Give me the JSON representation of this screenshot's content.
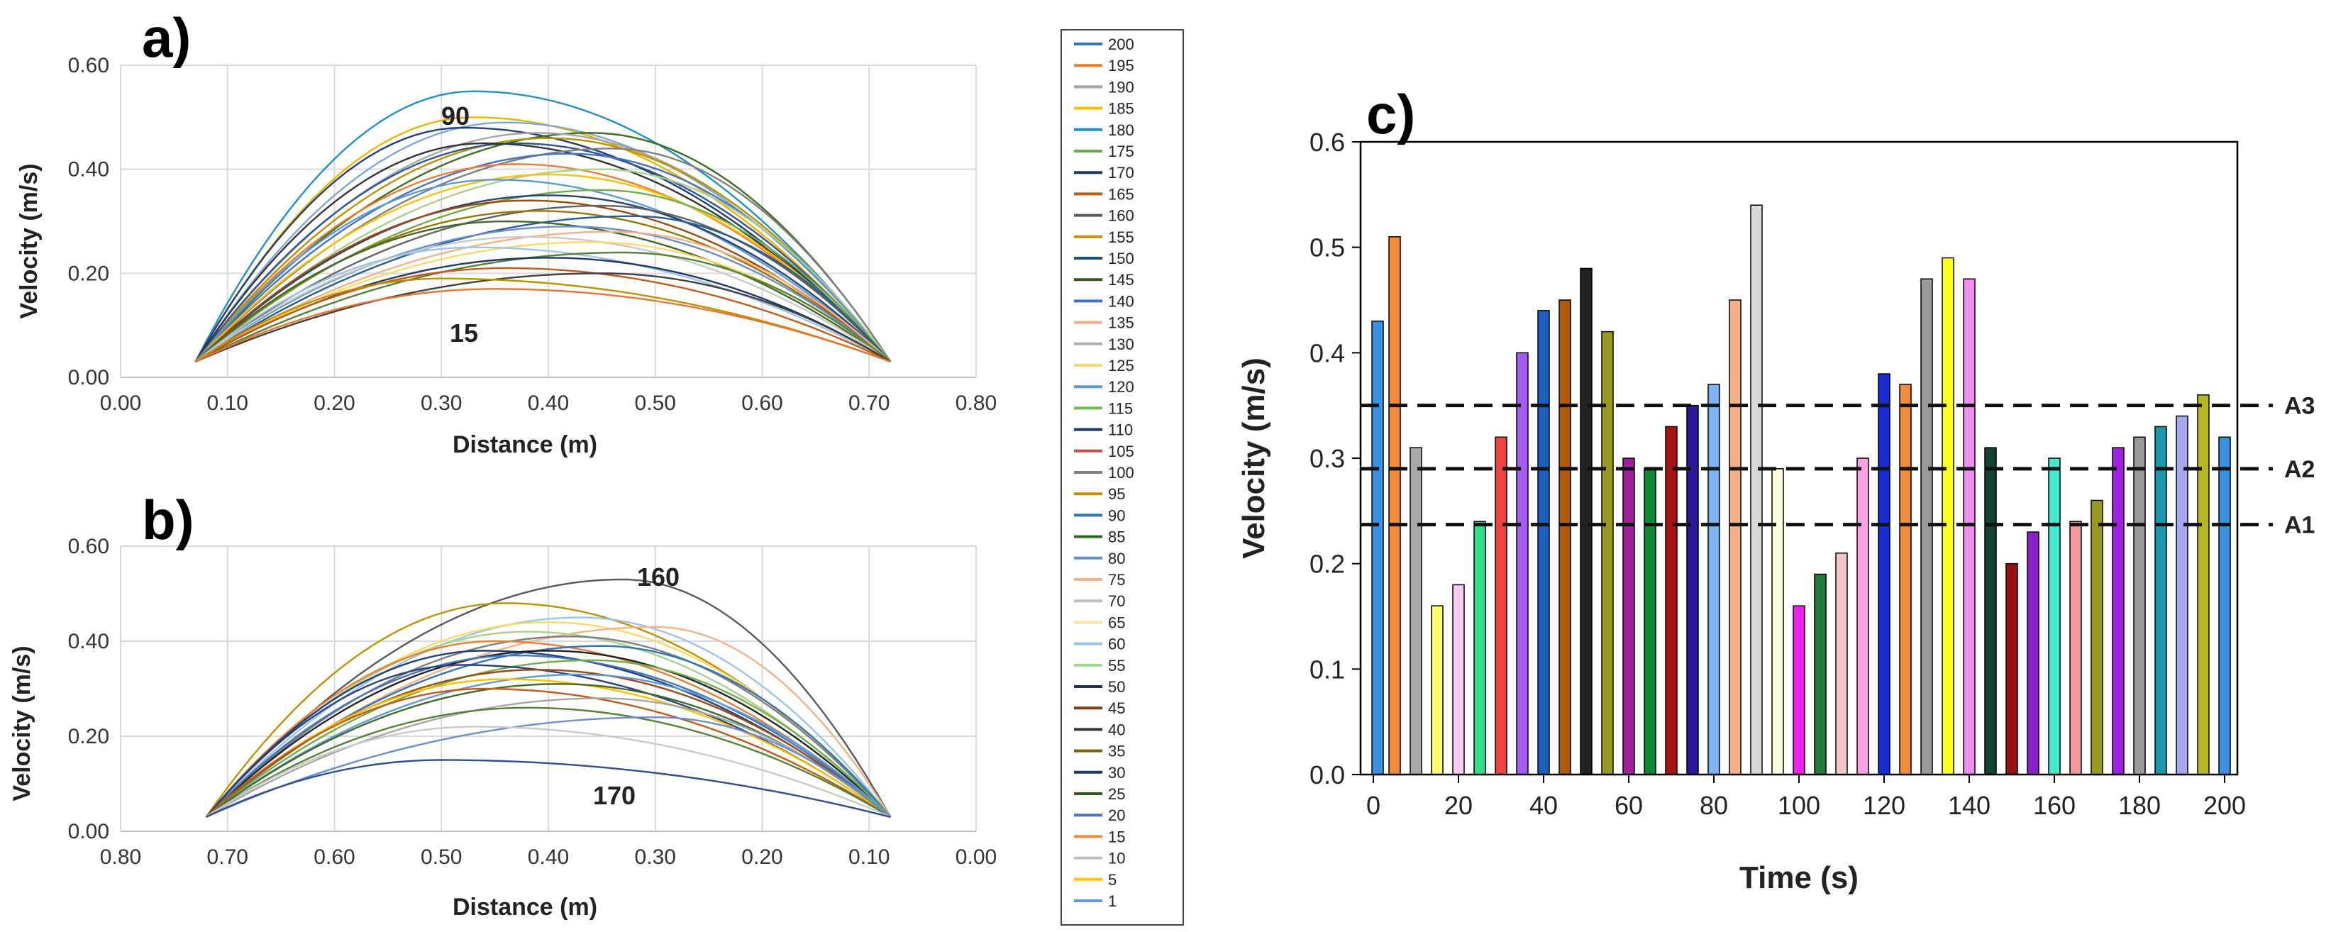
{
  "chart_data": [
    {
      "panel": "a)",
      "type": "line",
      "title": "",
      "xlabel": "Distance (m)",
      "ylabel": "Velocity (m/s)",
      "xlim": [
        0.0,
        0.8
      ],
      "ylim": [
        0.0,
        0.6
      ],
      "x_ticks": [
        "0.00",
        "0.10",
        "0.20",
        "0.30",
        "0.40",
        "0.50",
        "0.60",
        "0.70",
        "0.80"
      ],
      "y_ticks": [
        "0.00",
        "0.20",
        "0.40",
        "0.60"
      ],
      "x_tick_values": [
        0,
        0.1,
        0.2,
        0.3,
        0.4,
        0.5,
        0.6,
        0.7,
        0.8
      ],
      "y_tick_values": [
        0,
        0.2,
        0.4,
        0.6
      ],
      "grid": true,
      "x_range_data": [
        0.07,
        0.72
      ],
      "annotations": [
        {
          "text": "90",
          "x": 0.33,
          "y": 0.565
        },
        {
          "text": "15",
          "x": 0.33,
          "y": 0.095
        }
      ],
      "series": [
        {
          "name": "90",
          "peak": 0.55,
          "peak_x": 0.33,
          "color": "#1f8fcc"
        },
        {
          "name": "85",
          "peak": 0.5,
          "peak_x": 0.33,
          "color": "#f0b400"
        },
        {
          "name": "80",
          "peak": 0.49,
          "peak_x": 0.36,
          "color": "#7ea6d8"
        },
        {
          "name": "75",
          "peak": 0.48,
          "peak_x": 0.32,
          "color": "#1f3f7a"
        },
        {
          "name": "70",
          "peak": 0.47,
          "peak_x": 0.44,
          "color": "#3b6e1e"
        },
        {
          "name": "65",
          "peak": 0.47,
          "peak_x": 0.39,
          "color": "#a5a5a5"
        },
        {
          "name": "60",
          "peak": 0.46,
          "peak_x": 0.4,
          "color": "#bf9000"
        },
        {
          "name": "55",
          "peak": 0.45,
          "peak_x": 0.37,
          "color": "#2f5597"
        },
        {
          "name": "50",
          "peak": 0.45,
          "peak_x": 0.34,
          "color": "#333333"
        },
        {
          "name": "45",
          "peak": 0.44,
          "peak_x": 0.46,
          "color": "#7f7f7f"
        },
        {
          "name": "40",
          "peak": 0.43,
          "peak_x": 0.42,
          "color": "#4472c4"
        },
        {
          "name": "35",
          "peak": 0.41,
          "peak_x": 0.37,
          "color": "#ed7d31"
        },
        {
          "name": "30",
          "peak": 0.4,
          "peak_x": 0.45,
          "color": "#a9d18e"
        },
        {
          "name": "25",
          "peak": 0.39,
          "peak_x": 0.4,
          "color": "#ffc000"
        },
        {
          "name": "20",
          "peak": 0.38,
          "peak_x": 0.35,
          "color": "#5b9bd5"
        },
        {
          "name": "10",
          "peak": 0.36,
          "peak_x": 0.45,
          "color": "#70ad47"
        },
        {
          "name": "5",
          "peak": 0.35,
          "peak_x": 0.4,
          "color": "#264478"
        },
        {
          "name": "1",
          "peak": 0.34,
          "peak_x": 0.38,
          "color": "#9e480e"
        },
        {
          "name": "95",
          "peak": 0.33,
          "peak_x": 0.45,
          "color": "#636363"
        },
        {
          "name": "100",
          "peak": 0.32,
          "peak_x": 0.39,
          "color": "#997300"
        },
        {
          "name": "105",
          "peak": 0.31,
          "peak_x": 0.48,
          "color": "#255e91"
        },
        {
          "name": "110",
          "peak": 0.3,
          "peak_x": 0.36,
          "color": "#43682b"
        },
        {
          "name": "115",
          "peak": 0.29,
          "peak_x": 0.42,
          "color": "#698ed0"
        },
        {
          "name": "120",
          "peak": 0.28,
          "peak_x": 0.46,
          "color": "#f4b183"
        },
        {
          "name": "125",
          "peak": 0.27,
          "peak_x": 0.38,
          "color": "#c9c9c9"
        },
        {
          "name": "130",
          "peak": 0.26,
          "peak_x": 0.44,
          "color": "#ffd966"
        },
        {
          "name": "135",
          "peak": 0.25,
          "peak_x": 0.33,
          "color": "#9dc3e6"
        },
        {
          "name": "140",
          "peak": 0.24,
          "peak_x": 0.47,
          "color": "#548235"
        },
        {
          "name": "145",
          "peak": 0.23,
          "peak_x": 0.4,
          "color": "#203864"
        },
        {
          "name": "150",
          "peak": 0.21,
          "peak_x": 0.36,
          "color": "#c55a11"
        },
        {
          "name": "155",
          "peak": 0.2,
          "peak_x": 0.45,
          "color": "#404040"
        },
        {
          "name": "160",
          "peak": 0.19,
          "peak_x": 0.3,
          "color": "#bf8f00"
        },
        {
          "name": "15",
          "peak": 0.17,
          "peak_x": 0.35,
          "color": "#e9742c"
        }
      ]
    },
    {
      "panel": "b)",
      "type": "line",
      "title": "",
      "xlabel": "Distance (m)",
      "ylabel": "Velocity (m/s)",
      "xlim": [
        0.8,
        0.0
      ],
      "ylim": [
        0.0,
        0.6
      ],
      "x_ticks": [
        "0.80",
        "0.70",
        "0.60",
        "0.50",
        "0.40",
        "0.30",
        "0.20",
        "0.10",
        "0.00"
      ],
      "y_ticks": [
        "0.00",
        "0.20",
        "0.40",
        "0.60"
      ],
      "x_tick_values": [
        0.8,
        0.7,
        0.6,
        0.5,
        0.4,
        0.3,
        0.2,
        0.1,
        0
      ],
      "y_tick_values": [
        0,
        0.2,
        0.4,
        0.6
      ],
      "grid": true,
      "x_range_data": [
        0.72,
        0.08
      ],
      "annotations": [
        {
          "text": "160",
          "x": 0.33,
          "y": 0.555
        },
        {
          "text": "170",
          "x": 0.37,
          "y": 0.075
        }
      ],
      "series": [
        {
          "name": "160",
          "peak": 0.53,
          "peak_x": 0.33,
          "color": "#595959"
        },
        {
          "name": "155",
          "peak": 0.48,
          "peak_x": 0.44,
          "color": "#bf9000"
        },
        {
          "name": "165",
          "peak": 0.45,
          "peak_x": 0.37,
          "color": "#9dc3e6"
        },
        {
          "name": "175",
          "peak": 0.44,
          "peak_x": 0.4,
          "color": "#ffd966"
        },
        {
          "name": "180",
          "peak": 0.43,
          "peak_x": 0.3,
          "color": "#f4b183"
        },
        {
          "name": "185",
          "peak": 0.42,
          "peak_x": 0.42,
          "color": "#a9d18e"
        },
        {
          "name": "190",
          "peak": 0.41,
          "peak_x": 0.38,
          "color": "#7f7f7f"
        },
        {
          "name": "195",
          "peak": 0.4,
          "peak_x": 0.45,
          "color": "#ed7d31"
        },
        {
          "name": "200",
          "peak": 0.39,
          "peak_x": 0.35,
          "color": "#2f75b5"
        },
        {
          "name": "150",
          "peak": 0.38,
          "peak_x": 0.46,
          "color": "#1f3f7a"
        },
        {
          "name": "145",
          "peak": 0.38,
          "peak_x": 0.4,
          "color": "#222222"
        },
        {
          "name": "140",
          "peak": 0.37,
          "peak_x": 0.43,
          "color": "#4472c4"
        },
        {
          "name": "135",
          "peak": 0.36,
          "peak_x": 0.36,
          "color": "#70ad47"
        },
        {
          "name": "130",
          "peak": 0.35,
          "peak_x": 0.48,
          "color": "#264478"
        },
        {
          "name": "125",
          "peak": 0.34,
          "peak_x": 0.41,
          "color": "#9e480e"
        },
        {
          "name": "120",
          "peak": 0.33,
          "peak_x": 0.37,
          "color": "#5b9bd5"
        },
        {
          "name": "115",
          "peak": 0.32,
          "peak_x": 0.44,
          "color": "#ffc000"
        },
        {
          "name": "110",
          "peak": 0.31,
          "peak_x": 0.39,
          "color": "#43682b"
        },
        {
          "name": "105",
          "peak": 0.3,
          "peak_x": 0.46,
          "color": "#c55a11"
        },
        {
          "name": "100",
          "peak": 0.28,
          "peak_x": 0.35,
          "color": "#a5a5a5"
        },
        {
          "name": "95",
          "peak": 0.26,
          "peak_x": 0.42,
          "color": "#548235"
        },
        {
          "name": "90",
          "peak": 0.24,
          "peak_x": 0.3,
          "color": "#698ed0"
        },
        {
          "name": "85",
          "peak": 0.22,
          "peak_x": 0.47,
          "color": "#c9c9c9"
        },
        {
          "name": "170",
          "peak": 0.15,
          "peak_x": 0.5,
          "color": "#2e4e8f"
        }
      ]
    },
    {
      "panel": "c)",
      "type": "bar",
      "title": "",
      "xlabel": "Time (s)",
      "ylabel": "Velocity (m/s)",
      "xlim": [
        -3,
        203
      ],
      "ylim": [
        0.0,
        0.6
      ],
      "x_ticks": [
        "0",
        "20",
        "40",
        "60",
        "80",
        "100",
        "120",
        "140",
        "160",
        "180",
        "200"
      ],
      "x_tick_values": [
        0,
        20,
        40,
        60,
        80,
        100,
        120,
        140,
        160,
        180,
        200
      ],
      "y_ticks": [
        "0.0",
        "0.1",
        "0.2",
        "0.3",
        "0.4",
        "0.5",
        "0.6"
      ],
      "y_tick_values": [
        0,
        0.1,
        0.2,
        0.3,
        0.4,
        0.5,
        0.6
      ],
      "grid": false,
      "x": [
        1,
        5,
        10,
        15,
        20,
        25,
        30,
        35,
        40,
        45,
        50,
        55,
        60,
        65,
        70,
        75,
        80,
        85,
        90,
        95,
        100,
        105,
        110,
        115,
        120,
        125,
        130,
        135,
        140,
        145,
        150,
        155,
        160,
        165,
        170,
        175,
        180,
        185,
        190,
        195,
        200
      ],
      "values": [
        0.43,
        0.51,
        0.31,
        0.16,
        0.18,
        0.24,
        0.32,
        0.4,
        0.44,
        0.45,
        0.48,
        0.42,
        0.3,
        0.29,
        0.33,
        0.35,
        0.37,
        0.45,
        0.54,
        0.29,
        0.16,
        0.19,
        0.21,
        0.3,
        0.38,
        0.37,
        0.47,
        0.49,
        0.47,
        0.31,
        0.2,
        0.23,
        0.3,
        0.24,
        0.26,
        0.31,
        0.32,
        0.33,
        0.34,
        0.36,
        0.32
      ],
      "bar_colors": [
        "#3a8fde",
        "#f08a3c",
        "#a8a8a8",
        "#ffff6e",
        "#f6c9f0",
        "#33dd88",
        "#ee4444",
        "#a35cf0",
        "#1f5fbf",
        "#b05a10",
        "#222222",
        "#999922",
        "#a020a0",
        "#118833",
        "#aa1111",
        "#2a1a9a",
        "#7fb2f0",
        "#f4b18a",
        "#d8d8d8",
        "#fffbe0",
        "#ee22ee",
        "#1f7a3a",
        "#f0c8c8",
        "#f8a0e0",
        "#1a2bd8",
        "#f08a3c",
        "#9a9a9a",
        "#ffff22",
        "#f08ef0",
        "#114433",
        "#991111",
        "#8a22cc",
        "#44e8cc",
        "#f09a9a",
        "#999922",
        "#a022e0",
        "#9a9a9a",
        "#1a9aa8",
        "#a8a8f0",
        "#b8b822",
        "#3a8fde"
      ],
      "reference_lines": [
        {
          "label": "A3",
          "value": 0.35
        },
        {
          "label": "A2",
          "value": 0.29
        },
        {
          "label": "A1",
          "value": 0.237
        }
      ]
    }
  ],
  "panel_labels": {
    "a": "a)",
    "b": "b)",
    "c": "c)"
  },
  "legend_entries": [
    "200",
    "195",
    "190",
    "185",
    "180",
    "175",
    "170",
    "165",
    "160",
    "155",
    "150",
    "145",
    "140",
    "135",
    "130",
    "125",
    "120",
    "115",
    "110",
    "105",
    "100",
    "95",
    "90",
    "85",
    "80",
    "75",
    "70",
    "65",
    "60",
    "55",
    "50",
    "45",
    "40",
    "35",
    "30",
    "25",
    "20",
    "15",
    "10",
    "5",
    "1"
  ],
  "legend_colors": [
    "#2e75b6",
    "#ed7d31",
    "#a5a5a5",
    "#ffc000",
    "#1f8fcc",
    "#70ad47",
    "#1f3864",
    "#c55a11",
    "#595959",
    "#bf9000",
    "#1f4e79",
    "#375623",
    "#4472c4",
    "#f4b183",
    "#b0b0b0",
    "#ffd966",
    "#5b9bd5",
    "#70c050",
    "#203864",
    "#c0504d",
    "#7f7f7f",
    "#bf9000",
    "#2e75b6",
    "#2f6e1e",
    "#698ed0",
    "#f4b183",
    "#bfbfbf",
    "#ffe699",
    "#9dc3e6",
    "#a9d18e",
    "#1f2f50",
    "#843c0c",
    "#3a3a3a",
    "#7f6000",
    "#203864",
    "#375623",
    "#4472c4",
    "#f08a3c",
    "#bfbfbf",
    "#ffc000",
    "#5b9bd5"
  ]
}
